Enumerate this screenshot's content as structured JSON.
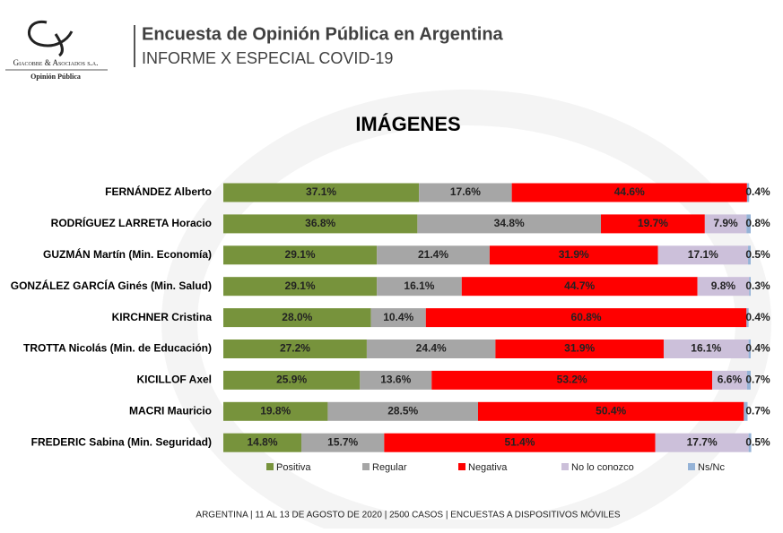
{
  "header": {
    "company": "Giacobbe & Asociados s.a.",
    "tagline": "Opinión Pública",
    "title": "Encuesta de Opinión Pública en Argentina",
    "subtitle": "INFORME X ESPECIAL COVID-19"
  },
  "chart_data": {
    "type": "stacked-bar-horizontal",
    "title": "IMÁGENES",
    "categories": [
      "FERNÁNDEZ Alberto",
      "RODRÍGUEZ LARRETA Horacio",
      "GUZMÁN Martín (Min. Economía)",
      "GONZÁLEZ GARCÍA Ginés (Min. Salud)",
      "KIRCHNER Cristina",
      "TROTTA Nicolás (Min. de Educación)",
      "KICILLOF Axel",
      "MACRI Mauricio",
      "FREDERIC Sabina (Min. Seguridad)"
    ],
    "series": [
      {
        "name": "Positiva",
        "color": "#77933c",
        "values": [
          37.1,
          36.8,
          29.1,
          29.1,
          28.0,
          27.2,
          25.9,
          19.8,
          14.8
        ],
        "value_labels": [
          "37.1%",
          "36.8%",
          "29.1%",
          "29.1%",
          "28.0%",
          "27.2%",
          "25.9%",
          "19.8%",
          "14.8%"
        ]
      },
      {
        "name": "Regular",
        "color": "#a6a6a6",
        "values": [
          17.6,
          34.8,
          21.4,
          16.1,
          10.4,
          24.4,
          13.6,
          28.5,
          15.7
        ],
        "value_labels": [
          "17.6%",
          "34.8%",
          "21.4%",
          "16.1%",
          "10.4%",
          "24.4%",
          "13.6%",
          "28.5%",
          "15.7%"
        ]
      },
      {
        "name": "Negativa",
        "color": "#ff0000",
        "values": [
          44.6,
          19.7,
          31.9,
          44.7,
          60.8,
          31.9,
          53.2,
          50.4,
          51.4
        ],
        "value_labels": [
          "44.6%",
          "19.7%",
          "31.9%",
          "44.7%",
          "60.8%",
          "31.9%",
          "53.2%",
          "50.4%",
          "51.4%"
        ]
      },
      {
        "name": "No lo conozco",
        "color": "#ccc0da",
        "values": [
          null,
          7.9,
          17.1,
          9.8,
          null,
          16.1,
          6.6,
          null,
          17.7
        ],
        "value_labels": [
          null,
          "7.9%",
          "17.1%",
          "9.8%",
          null,
          "16.1%",
          "6.6%",
          null,
          "17.7%"
        ]
      },
      {
        "name": "Ns/Nc",
        "color": "#95b3d7",
        "values": [
          0.4,
          0.8,
          0.5,
          0.3,
          0.4,
          0.4,
          0.7,
          0.7,
          0.5
        ],
        "value_labels": [
          "0.4%",
          "0.8%",
          "0.5%",
          "0.3%",
          "0.4%",
          "0.4%",
          "0.7%",
          "0.7%",
          "0.5%"
        ]
      }
    ]
  },
  "footer": "ARGENTINA | 11 AL 13 DE AGOSTO DE 2020 | 2500 CASOS | ENCUESTAS A DISPOSITIVOS MÓVILES"
}
